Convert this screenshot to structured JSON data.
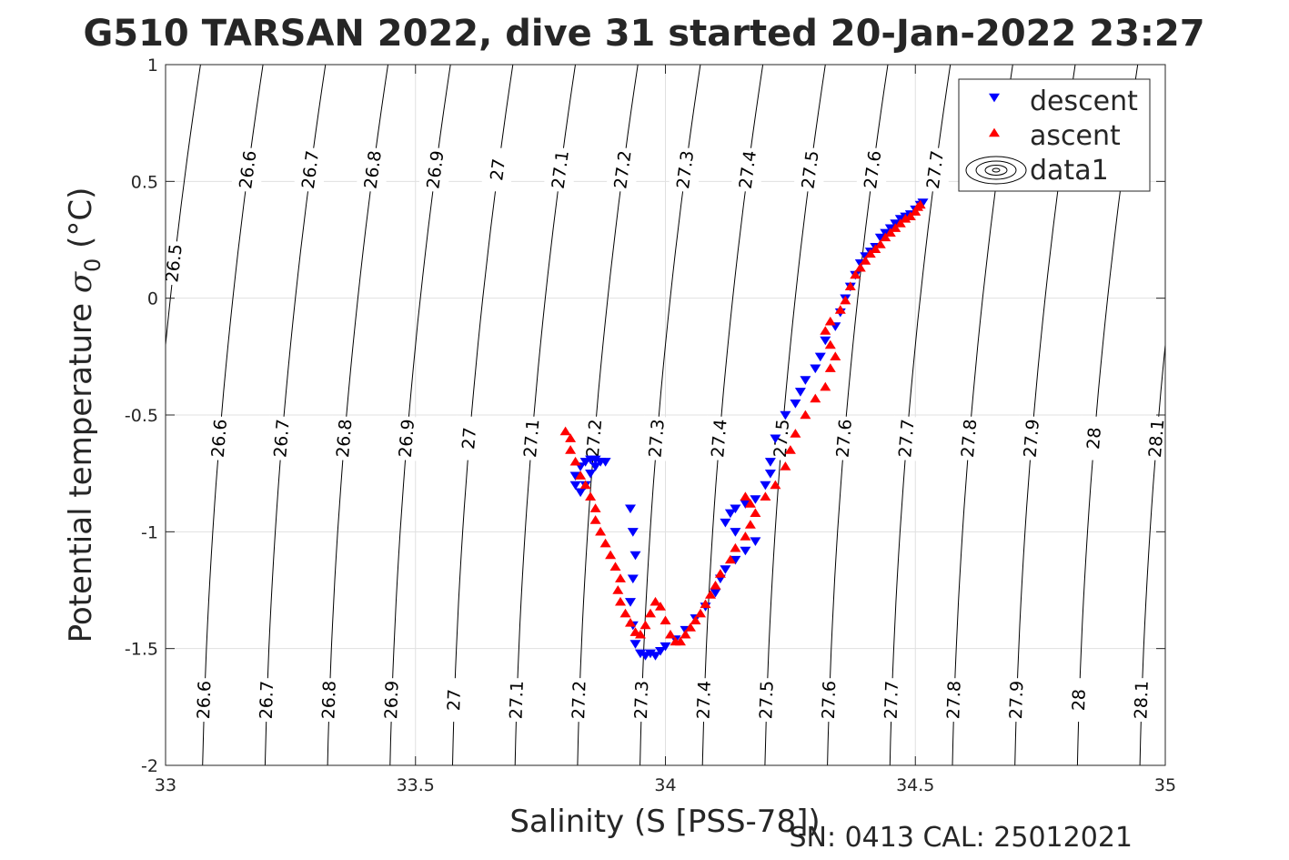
{
  "chart_data": {
    "type": "scatter",
    "title": "G510 TARSAN 2022, dive 31 started 20-Jan-2022 23:27",
    "xlabel": "Salinity (S [PSS-78])",
    "ylabel": "Potential temperature σ 0 (°C)",
    "ylabel_main": "Potential temperature ",
    "ylabel_sigma": "σ",
    "ylabel_sub": "0",
    "ylabel_unit": " (°C)",
    "footer": "SN: 0413  CAL: 25012021",
    "xlim": [
      33,
      35
    ],
    "ylim": [
      -2,
      1
    ],
    "x_ticks": [
      "33",
      "33.5",
      "34",
      "34.5",
      "35"
    ],
    "x_tick_values": [
      33,
      33.5,
      34,
      34.5,
      35
    ],
    "y_ticks": [
      "1",
      "0.5",
      "0",
      "-0.5",
      "-1",
      "-1.5",
      "-2"
    ],
    "y_tick_values": [
      1,
      0.5,
      0,
      -0.5,
      -1,
      -1.5,
      -2
    ],
    "grid": true,
    "legend_position": "top-right",
    "legend": [
      "descent",
      "ascent",
      "data1"
    ],
    "colors": {
      "descent": "#0000ff",
      "ascent": "#ff0000",
      "contour": "#000000",
      "grid": "#e0e0e0",
      "axis": "#262626"
    },
    "contours": {
      "levels": [
        "26.5",
        "26.6",
        "26.7",
        "26.8",
        "26.9",
        "27",
        "27.1",
        "27.2",
        "27.3",
        "27.4",
        "27.5",
        "27.6",
        "27.7",
        "27.8",
        "27.9",
        "28",
        "28.1"
      ],
      "level_values": [
        26.5,
        26.6,
        26.7,
        26.8,
        26.9,
        27.0,
        27.1,
        27.2,
        27.3,
        27.4,
        27.5,
        27.6,
        27.7,
        27.8,
        27.9,
        28.0,
        28.1
      ],
      "label_top": [
        "",
        "26.6",
        "26.7",
        "26.8",
        "26.9",
        "27",
        "27.1",
        "27.2",
        "27.3",
        "27.4",
        "27.5",
        "27.6",
        "27.7",
        "",
        "",
        "",
        ""
      ],
      "label_mid": [
        "26.5",
        "26.6",
        "26.7",
        "26.8",
        "26.9",
        "27",
        "27.1",
        "27.2",
        "27.3",
        "27.4",
        "27.5",
        "27.6",
        "27.7",
        "27.8",
        "27.9",
        "28",
        "28.1"
      ],
      "label_bot": [
        "",
        "26.6",
        "26.7",
        "26.8",
        "26.9",
        "27",
        "27.1",
        "27.2",
        "27.3",
        "27.4",
        "27.5",
        "27.6",
        "27.7",
        "27.8",
        "27.9",
        "28",
        "28.1"
      ]
    },
    "series": [
      {
        "name": "descent",
        "marker": "triangle-down",
        "points": [
          [
            33.88,
            -0.7
          ],
          [
            33.87,
            -0.7
          ],
          [
            33.86,
            -0.69
          ],
          [
            33.85,
            -0.69
          ],
          [
            33.84,
            -0.7
          ],
          [
            33.83,
            -0.72
          ],
          [
            33.82,
            -0.76
          ],
          [
            33.82,
            -0.8
          ],
          [
            33.83,
            -0.83
          ],
          [
            33.84,
            -0.8
          ],
          [
            33.86,
            -0.72
          ],
          [
            33.85,
            -0.75
          ],
          [
            33.93,
            -0.9
          ],
          [
            33.935,
            -1.0
          ],
          [
            33.94,
            -1.1
          ],
          [
            33.935,
            -1.2
          ],
          [
            33.93,
            -1.3
          ],
          [
            33.935,
            -1.4
          ],
          [
            33.94,
            -1.48
          ],
          [
            33.95,
            -1.52
          ],
          [
            33.96,
            -1.53
          ],
          [
            33.97,
            -1.52
          ],
          [
            33.98,
            -1.53
          ],
          [
            33.99,
            -1.51
          ],
          [
            34.0,
            -1.49
          ],
          [
            34.02,
            -1.46
          ],
          [
            34.04,
            -1.42
          ],
          [
            34.06,
            -1.37
          ],
          [
            34.08,
            -1.32
          ],
          [
            34.1,
            -1.26
          ],
          [
            34.11,
            -1.2
          ],
          [
            34.12,
            -1.16
          ],
          [
            34.14,
            -1.12
          ],
          [
            34.16,
            -1.08
          ],
          [
            34.18,
            -1.04
          ],
          [
            34.14,
            -1.0
          ],
          [
            34.12,
            -0.96
          ],
          [
            34.13,
            -0.92
          ],
          [
            34.14,
            -0.9
          ],
          [
            34.16,
            -0.88
          ],
          [
            34.18,
            -0.86
          ],
          [
            34.2,
            -0.8
          ],
          [
            34.21,
            -0.75
          ],
          [
            34.21,
            -0.7
          ],
          [
            34.22,
            -0.6
          ],
          [
            34.24,
            -0.5
          ],
          [
            34.26,
            -0.45
          ],
          [
            34.27,
            -0.4
          ],
          [
            34.28,
            -0.35
          ],
          [
            34.3,
            -0.3
          ],
          [
            34.31,
            -0.25
          ],
          [
            34.32,
            -0.18
          ],
          [
            34.34,
            -0.12
          ],
          [
            34.35,
            -0.06
          ],
          [
            34.36,
            0.0
          ],
          [
            34.37,
            0.05
          ],
          [
            34.38,
            0.1
          ],
          [
            34.39,
            0.15
          ],
          [
            34.4,
            0.18
          ],
          [
            34.41,
            0.2
          ],
          [
            34.42,
            0.22
          ],
          [
            34.43,
            0.26
          ],
          [
            34.44,
            0.28
          ],
          [
            34.45,
            0.3
          ],
          [
            34.46,
            0.32
          ],
          [
            34.47,
            0.34
          ],
          [
            34.48,
            0.35
          ],
          [
            34.49,
            0.36
          ],
          [
            34.5,
            0.38
          ],
          [
            34.51,
            0.4
          ],
          [
            34.515,
            0.41
          ]
        ]
      },
      {
        "name": "ascent",
        "marker": "triangle-up",
        "points": [
          [
            33.8,
            -0.57
          ],
          [
            33.81,
            -0.6
          ],
          [
            33.81,
            -0.65
          ],
          [
            33.82,
            -0.7
          ],
          [
            33.83,
            -0.76
          ],
          [
            33.84,
            -0.8
          ],
          [
            33.85,
            -0.85
          ],
          [
            33.86,
            -0.9
          ],
          [
            33.86,
            -0.95
          ],
          [
            33.87,
            -1.0
          ],
          [
            33.88,
            -1.05
          ],
          [
            33.89,
            -1.1
          ],
          [
            33.9,
            -1.15
          ],
          [
            33.91,
            -1.2
          ],
          [
            33.905,
            -1.25
          ],
          [
            33.91,
            -1.3
          ],
          [
            33.92,
            -1.35
          ],
          [
            33.93,
            -1.39
          ],
          [
            33.94,
            -1.43
          ],
          [
            33.95,
            -1.44
          ],
          [
            33.96,
            -1.4
          ],
          [
            33.97,
            -1.35
          ],
          [
            33.98,
            -1.3
          ],
          [
            33.99,
            -1.32
          ],
          [
            34.0,
            -1.38
          ],
          [
            34.01,
            -1.44
          ],
          [
            34.02,
            -1.47
          ],
          [
            34.03,
            -1.47
          ],
          [
            34.04,
            -1.44
          ],
          [
            34.05,
            -1.41
          ],
          [
            34.06,
            -1.38
          ],
          [
            34.07,
            -1.35
          ],
          [
            34.08,
            -1.31
          ],
          [
            34.09,
            -1.27
          ],
          [
            34.1,
            -1.23
          ],
          [
            34.11,
            -1.18
          ],
          [
            34.13,
            -1.12
          ],
          [
            34.14,
            -1.07
          ],
          [
            34.16,
            -1.02
          ],
          [
            34.17,
            -0.97
          ],
          [
            34.18,
            -0.92
          ],
          [
            34.17,
            -0.88
          ],
          [
            34.16,
            -0.85
          ],
          [
            34.2,
            -0.85
          ],
          [
            34.22,
            -0.8
          ],
          [
            34.24,
            -0.72
          ],
          [
            34.25,
            -0.65
          ],
          [
            34.26,
            -0.58
          ],
          [
            34.28,
            -0.5
          ],
          [
            34.3,
            -0.43
          ],
          [
            34.32,
            -0.38
          ],
          [
            34.33,
            -0.3
          ],
          [
            34.34,
            -0.25
          ],
          [
            34.33,
            -0.2
          ],
          [
            34.32,
            -0.14
          ],
          [
            34.33,
            -0.1
          ],
          [
            34.35,
            -0.05
          ],
          [
            34.36,
            -0.01
          ],
          [
            34.37,
            0.05
          ],
          [
            34.38,
            0.1
          ],
          [
            34.39,
            0.13
          ],
          [
            34.4,
            0.16
          ],
          [
            34.41,
            0.19
          ],
          [
            34.42,
            0.21
          ],
          [
            34.43,
            0.23
          ],
          [
            34.44,
            0.26
          ],
          [
            34.45,
            0.28
          ],
          [
            34.46,
            0.3
          ],
          [
            34.47,
            0.32
          ],
          [
            34.48,
            0.34
          ],
          [
            34.49,
            0.35
          ],
          [
            34.5,
            0.37
          ],
          [
            34.505,
            0.39
          ],
          [
            34.51,
            0.4
          ]
        ]
      }
    ]
  }
}
